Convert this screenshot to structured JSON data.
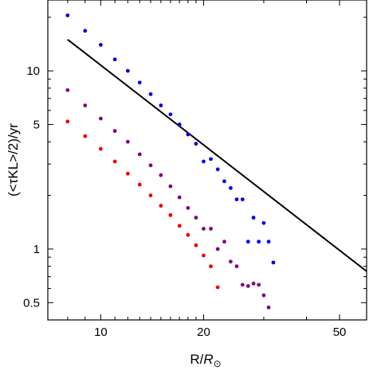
{
  "chart_data": {
    "type": "scatter",
    "xscale": "log",
    "yscale": "log",
    "xlim": [
      7.0,
      60.0
    ],
    "ylim": [
      0.4,
      25.0
    ],
    "xlabel": "R/",
    "xlabel_sub": "R",
    "xlabel_symbol": "⊙",
    "ylabel": "(<τKL>/2)/yr",
    "x_ticks": [
      10,
      20,
      50
    ],
    "x_tick_labels": [
      "10",
      "20",
      "50"
    ],
    "y_ticks": [
      0.5,
      1,
      5,
      10
    ],
    "y_tick_labels": [
      "0.5",
      "1",
      "5",
      "10"
    ],
    "grid": false,
    "legend": "none",
    "series": [
      {
        "color": "#0000ee",
        "marker": "dot",
        "x": [
          8.0,
          9.0,
          10.0,
          11.0,
          12.0,
          13.0,
          14.0,
          15.0,
          16.0,
          17.0,
          18.0,
          19.0,
          20.0,
          21.0,
          22.0,
          23.0,
          24.0,
          25.0,
          26.0,
          27.0,
          28.0,
          29.0,
          30.0,
          31.0,
          32.0
        ],
        "y": [
          20.5,
          16.8,
          14.0,
          11.6,
          10.0,
          8.6,
          7.4,
          6.4,
          5.7,
          5.0,
          4.4,
          3.9,
          3.1,
          3.2,
          2.8,
          2.4,
          2.2,
          1.9,
          1.9,
          1.1,
          1.5,
          1.1,
          1.4,
          1.1,
          0.84
        ]
      },
      {
        "color": "#800080",
        "marker": "dot",
        "x": [
          8.0,
          9.0,
          10.0,
          11.0,
          12.0,
          13.0,
          14.0,
          15.0,
          16.0,
          17.0,
          18.0,
          19.0,
          20.0,
          21.0,
          22.0,
          23.0,
          24.0,
          25.0,
          26.0,
          27.0,
          28.0,
          29.0,
          30.0,
          31.0
        ],
        "y": [
          7.8,
          6.4,
          5.4,
          4.6,
          4.0,
          3.4,
          2.95,
          2.6,
          2.25,
          1.95,
          1.7,
          1.5,
          1.3,
          1.3,
          1.0,
          1.1,
          0.85,
          0.8,
          0.63,
          0.62,
          0.64,
          0.63,
          0.55,
          0.47
        ]
      },
      {
        "color": "#ee0000",
        "marker": "dot",
        "x": [
          8.0,
          9.0,
          10.0,
          11.0,
          12.0,
          13.0,
          14.0,
          15.0,
          16.0,
          17.0,
          18.0,
          19.0,
          20.0,
          21.0,
          22.0
        ],
        "y": [
          5.2,
          4.3,
          3.65,
          3.1,
          2.65,
          2.3,
          2.0,
          1.75,
          1.55,
          1.35,
          1.2,
          1.05,
          0.92,
          0.8,
          0.61
        ]
      }
    ],
    "reference_line": {
      "color": "#000000",
      "x": [
        8.0,
        60.0
      ],
      "y": [
        15.0,
        0.75
      ]
    }
  }
}
